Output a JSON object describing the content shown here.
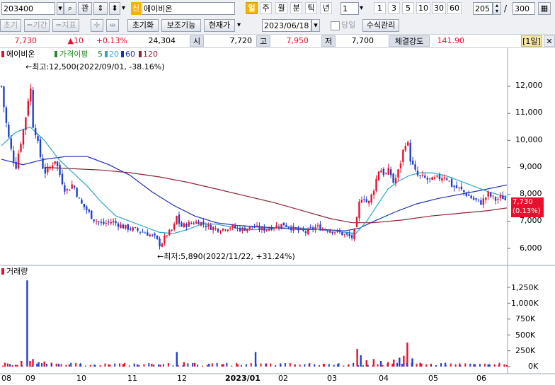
{
  "toolbar": {
    "code": "203400",
    "kwan": "관",
    "sin": "신",
    "stock_name": "에이비온",
    "periods": [
      "일",
      "주",
      "월",
      "분",
      "틱",
      "년"
    ],
    "interval": "1",
    "minutes": [
      "1",
      "3",
      "5",
      "10",
      "30",
      "60"
    ],
    "count": "205",
    "slash": "/",
    "total": "300"
  },
  "toolbar2": {
    "b1": "초기",
    "b2": "=기간",
    "b3": "=지표",
    "reset": "초기화",
    "aux": "보조기능",
    "current": "현재가",
    "date": "2023/06/18",
    "today": "당일",
    "manual": "수식관리"
  },
  "quote": {
    "price": "7,730",
    "change": "▲10",
    "rate": "+0.13%",
    "volume": "24,304",
    "open_label": "시",
    "open": "7,720",
    "high_label": "고",
    "high": "7,950",
    "low_label": "저",
    "low": "7,700",
    "strength_label": "체결강도",
    "strength": "141.90",
    "period_badge": "[1일]"
  },
  "legend": {
    "name": "에이비온",
    "ma_label": "가격이평",
    "ma": [
      "5",
      "20",
      "60",
      "120"
    ]
  },
  "annotations": {
    "high": "←최고:12,500(2022/09/01, -38.16%)",
    "low": "←최저:5,890(2022/11/22, +31.24%)"
  },
  "last_price_box": {
    "price": "7,730",
    "rate": "(0.13%)"
  },
  "volume_panel": {
    "title": "거래량"
  },
  "colors": {
    "up": "#e8112d",
    "down": "#1f3fcf",
    "ma5": "#2a8a2a",
    "ma20": "#2aa5c8",
    "ma60": "#1f2fb0",
    "ma120": "#8c2434"
  },
  "chart_data": [
    {
      "type": "candlestick",
      "title": "에이비온",
      "x_ticks": [
        "08",
        "09",
        "10",
        "11",
        "12",
        "2023/01",
        "02",
        "03",
        "04",
        "05",
        "06"
      ],
      "y_ticks": [
        "12,000",
        "11,000",
        "10,000",
        "9,000",
        "8,000",
        "7,000",
        "6,000"
      ],
      "ylim": [
        5500,
        13000
      ],
      "series_names": [
        "5",
        "20",
        "60",
        "120"
      ],
      "points": [
        {
          "t": 0,
          "c": 12000
        },
        {
          "t": 5,
          "c": 10900
        },
        {
          "t": 12,
          "c": 9800
        },
        {
          "t": 20,
          "c": 9000
        },
        {
          "t": 25,
          "c": 9700
        },
        {
          "t": 30,
          "c": 10300
        },
        {
          "t": 36,
          "c": 11200
        },
        {
          "t": 40,
          "c": 12200
        },
        {
          "t": 44,
          "c": 10600
        },
        {
          "t": 48,
          "c": 10300
        },
        {
          "t": 52,
          "c": 9700
        },
        {
          "t": 56,
          "c": 9200
        },
        {
          "t": 60,
          "c": 8800
        },
        {
          "t": 68,
          "c": 9000
        },
        {
          "t": 75,
          "c": 9300
        },
        {
          "t": 82,
          "c": 8700
        },
        {
          "t": 90,
          "c": 8100
        },
        {
          "t": 100,
          "c": 8400
        },
        {
          "t": 110,
          "c": 7700
        },
        {
          "t": 120,
          "c": 7400
        },
        {
          "t": 128,
          "c": 7100
        },
        {
          "t": 140,
          "c": 6900
        },
        {
          "t": 155,
          "c": 7000
        },
        {
          "t": 170,
          "c": 6800
        },
        {
          "t": 185,
          "c": 6700
        },
        {
          "t": 200,
          "c": 6600
        },
        {
          "t": 215,
          "c": 6400
        },
        {
          "t": 222,
          "c": 6100
        },
        {
          "t": 230,
          "c": 6500
        },
        {
          "t": 240,
          "c": 6700
        },
        {
          "t": 245,
          "c": 7200
        },
        {
          "t": 250,
          "c": 6800
        },
        {
          "t": 260,
          "c": 6900
        },
        {
          "t": 275,
          "c": 7000
        },
        {
          "t": 290,
          "c": 6800
        },
        {
          "t": 305,
          "c": 6700
        },
        {
          "t": 320,
          "c": 6800
        },
        {
          "t": 335,
          "c": 6700
        },
        {
          "t": 350,
          "c": 6800
        },
        {
          "t": 365,
          "c": 6700
        },
        {
          "t": 380,
          "c": 6800
        },
        {
          "t": 395,
          "c": 6900
        },
        {
          "t": 410,
          "c": 6700
        },
        {
          "t": 425,
          "c": 6600
        },
        {
          "t": 440,
          "c": 6800
        },
        {
          "t": 455,
          "c": 6700
        },
        {
          "t": 470,
          "c": 6600
        },
        {
          "t": 480,
          "c": 6500
        },
        {
          "t": 490,
          "c": 6400
        },
        {
          "t": 495,
          "c": 6800
        },
        {
          "t": 500,
          "c": 7700
        },
        {
          "t": 505,
          "c": 8000
        },
        {
          "t": 512,
          "c": 7600
        },
        {
          "t": 520,
          "c": 8200
        },
        {
          "t": 528,
          "c": 9000
        },
        {
          "t": 536,
          "c": 8700
        },
        {
          "t": 542,
          "c": 8900
        },
        {
          "t": 548,
          "c": 8400
        },
        {
          "t": 555,
          "c": 8900
        },
        {
          "t": 561,
          "c": 9600
        },
        {
          "t": 566,
          "c": 10100
        },
        {
          "t": 572,
          "c": 9200
        },
        {
          "t": 580,
          "c": 8700
        },
        {
          "t": 590,
          "c": 8600
        },
        {
          "t": 600,
          "c": 8500
        },
        {
          "t": 610,
          "c": 8600
        },
        {
          "t": 620,
          "c": 8700
        },
        {
          "t": 630,
          "c": 8300
        },
        {
          "t": 640,
          "c": 8200
        },
        {
          "t": 650,
          "c": 8000
        },
        {
          "t": 660,
          "c": 7800
        },
        {
          "t": 670,
          "c": 7700
        },
        {
          "t": 680,
          "c": 8000
        },
        {
          "t": 690,
          "c": 7800
        },
        {
          "t": 700,
          "c": 7900
        },
        {
          "t": 706,
          "c": 7730
        }
      ],
      "ma20": [
        {
          "t": 0,
          "c": 9800
        },
        {
          "t": 20,
          "c": 10300
        },
        {
          "t": 40,
          "c": 10500
        },
        {
          "t": 60,
          "c": 10000
        },
        {
          "t": 80,
          "c": 9300
        },
        {
          "t": 100,
          "c": 8800
        },
        {
          "t": 120,
          "c": 8300
        },
        {
          "t": 140,
          "c": 7700
        },
        {
          "t": 160,
          "c": 7200
        },
        {
          "t": 180,
          "c": 7000
        },
        {
          "t": 200,
          "c": 6800
        },
        {
          "t": 220,
          "c": 6600
        },
        {
          "t": 240,
          "c": 6550
        },
        {
          "t": 260,
          "c": 6700
        },
        {
          "t": 280,
          "c": 6900
        },
        {
          "t": 300,
          "c": 6900
        },
        {
          "t": 320,
          "c": 6800
        },
        {
          "t": 340,
          "c": 6700
        },
        {
          "t": 360,
          "c": 6700
        },
        {
          "t": 380,
          "c": 6750
        },
        {
          "t": 400,
          "c": 6800
        },
        {
          "t": 420,
          "c": 6750
        },
        {
          "t": 440,
          "c": 6700
        },
        {
          "t": 460,
          "c": 6650
        },
        {
          "t": 480,
          "c": 6600
        },
        {
          "t": 495,
          "c": 6550
        },
        {
          "t": 510,
          "c": 7000
        },
        {
          "t": 525,
          "c": 7600
        },
        {
          "t": 540,
          "c": 8200
        },
        {
          "t": 555,
          "c": 8500
        },
        {
          "t": 570,
          "c": 8700
        },
        {
          "t": 585,
          "c": 8800
        },
        {
          "t": 600,
          "c": 8800
        },
        {
          "t": 620,
          "c": 8700
        },
        {
          "t": 640,
          "c": 8500
        },
        {
          "t": 660,
          "c": 8300
        },
        {
          "t": 680,
          "c": 8100
        },
        {
          "t": 706,
          "c": 7900
        }
      ],
      "ma60": [
        {
          "t": 0,
          "c": 9300
        },
        {
          "t": 30,
          "c": 9100
        },
        {
          "t": 60,
          "c": 9300
        },
        {
          "t": 90,
          "c": 9400
        },
        {
          "t": 120,
          "c": 9400
        },
        {
          "t": 150,
          "c": 9100
        },
        {
          "t": 180,
          "c": 8700
        },
        {
          "t": 210,
          "c": 8100
        },
        {
          "t": 240,
          "c": 7600
        },
        {
          "t": 270,
          "c": 7200
        },
        {
          "t": 300,
          "c": 6950
        },
        {
          "t": 330,
          "c": 6850
        },
        {
          "t": 360,
          "c": 6800
        },
        {
          "t": 390,
          "c": 6750
        },
        {
          "t": 420,
          "c": 6700
        },
        {
          "t": 450,
          "c": 6700
        },
        {
          "t": 480,
          "c": 6650
        },
        {
          "t": 500,
          "c": 6750
        },
        {
          "t": 520,
          "c": 7000
        },
        {
          "t": 550,
          "c": 7350
        },
        {
          "t": 580,
          "c": 7650
        },
        {
          "t": 610,
          "c": 7850
        },
        {
          "t": 640,
          "c": 8000
        },
        {
          "t": 670,
          "c": 8150
        },
        {
          "t": 706,
          "c": 8350
        }
      ],
      "ma120": [
        {
          "t": 60,
          "c": 9000
        },
        {
          "t": 100,
          "c": 8950
        },
        {
          "t": 140,
          "c": 8900
        },
        {
          "t": 180,
          "c": 8800
        },
        {
          "t": 220,
          "c": 8650
        },
        {
          "t": 260,
          "c": 8450
        },
        {
          "t": 300,
          "c": 8200
        },
        {
          "t": 340,
          "c": 7950
        },
        {
          "t": 380,
          "c": 7700
        },
        {
          "t": 420,
          "c": 7400
        },
        {
          "t": 460,
          "c": 7100
        },
        {
          "t": 490,
          "c": 6950
        },
        {
          "t": 520,
          "c": 6950
        },
        {
          "t": 560,
          "c": 7050
        },
        {
          "t": 600,
          "c": 7200
        },
        {
          "t": 640,
          "c": 7300
        },
        {
          "t": 680,
          "c": 7400
        },
        {
          "t": 706,
          "c": 7500
        }
      ]
    },
    {
      "type": "bar",
      "title": "거래량",
      "y_ticks": [
        "1,250K",
        "1,000K",
        "750K",
        "500K",
        "250K",
        "0K"
      ],
      "ylim": [
        0,
        1400000
      ],
      "values": [
        {
          "t": 5,
          "v": 60000
        },
        {
          "t": 12,
          "v": 40000
        },
        {
          "t": 20,
          "v": 30000
        },
        {
          "t": 28,
          "v": 90000
        },
        {
          "t": 36,
          "v": 1360000
        },
        {
          "t": 40,
          "v": 90000
        },
        {
          "t": 44,
          "v": 120000
        },
        {
          "t": 52,
          "v": 70000
        },
        {
          "t": 60,
          "v": 80000
        },
        {
          "t": 70,
          "v": 60000
        },
        {
          "t": 80,
          "v": 45000
        },
        {
          "t": 95,
          "v": 35000
        },
        {
          "t": 110,
          "v": 40000
        },
        {
          "t": 130,
          "v": 30000
        },
        {
          "t": 150,
          "v": 35000
        },
        {
          "t": 170,
          "v": 40000
        },
        {
          "t": 190,
          "v": 35000
        },
        {
          "t": 210,
          "v": 45000
        },
        {
          "t": 222,
          "v": 30000
        },
        {
          "t": 245,
          "v": 230000
        },
        {
          "t": 255,
          "v": 70000
        },
        {
          "t": 270,
          "v": 60000
        },
        {
          "t": 290,
          "v": 45000
        },
        {
          "t": 310,
          "v": 40000
        },
        {
          "t": 330,
          "v": 35000
        },
        {
          "t": 355,
          "v": 230000
        },
        {
          "t": 370,
          "v": 50000
        },
        {
          "t": 390,
          "v": 40000
        },
        {
          "t": 410,
          "v": 35000
        },
        {
          "t": 430,
          "v": 40000
        },
        {
          "t": 450,
          "v": 45000
        },
        {
          "t": 470,
          "v": 40000
        },
        {
          "t": 485,
          "v": 35000
        },
        {
          "t": 497,
          "v": 280000
        },
        {
          "t": 502,
          "v": 180000
        },
        {
          "t": 510,
          "v": 100000
        },
        {
          "t": 520,
          "v": 120000
        },
        {
          "t": 530,
          "v": 90000
        },
        {
          "t": 540,
          "v": 70000
        },
        {
          "t": 548,
          "v": 110000
        },
        {
          "t": 556,
          "v": 140000
        },
        {
          "t": 562,
          "v": 170000
        },
        {
          "t": 567,
          "v": 380000
        },
        {
          "t": 574,
          "v": 130000
        },
        {
          "t": 585,
          "v": 60000
        },
        {
          "t": 600,
          "v": 45000
        },
        {
          "t": 620,
          "v": 60000
        },
        {
          "t": 640,
          "v": 50000
        },
        {
          "t": 660,
          "v": 40000
        },
        {
          "t": 680,
          "v": 35000
        },
        {
          "t": 695,
          "v": 30000
        },
        {
          "t": 706,
          "v": 25000
        }
      ]
    }
  ]
}
